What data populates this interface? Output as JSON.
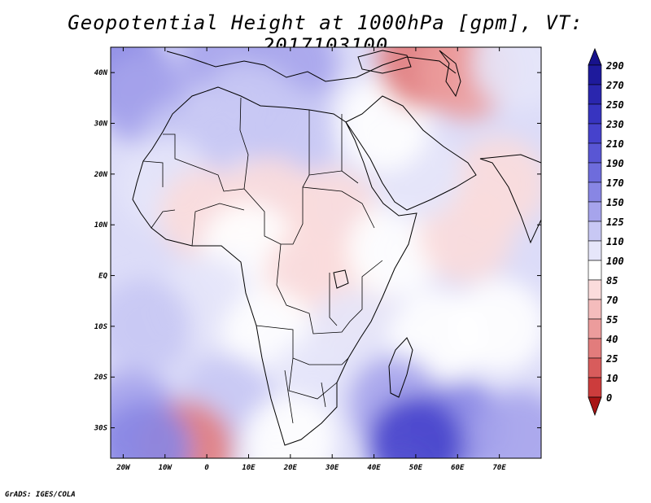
{
  "title": "Geopotential Height at 1000hPa [gpm], VT: 2017103100",
  "credit": "GrADS: IGES/COLA",
  "map": {
    "lat_range": [
      -36,
      45
    ],
    "lon_range": [
      -23,
      80
    ],
    "lat_ticks": [
      {
        "value": 40,
        "label": "40N"
      },
      {
        "value": 30,
        "label": "30N"
      },
      {
        "value": 20,
        "label": "20N"
      },
      {
        "value": 10,
        "label": "10N"
      },
      {
        "value": 0,
        "label": "EQ"
      },
      {
        "value": -10,
        "label": "10S"
      },
      {
        "value": -20,
        "label": "20S"
      },
      {
        "value": -30,
        "label": "30S"
      }
    ],
    "lon_ticks": [
      {
        "value": -20,
        "label": "20W"
      },
      {
        "value": -10,
        "label": "10W"
      },
      {
        "value": 0,
        "label": "0"
      },
      {
        "value": 10,
        "label": "10E"
      },
      {
        "value": 20,
        "label": "20E"
      },
      {
        "value": 30,
        "label": "30E"
      },
      {
        "value": 40,
        "label": "40E"
      },
      {
        "value": 50,
        "label": "50E"
      },
      {
        "value": 60,
        "label": "60E"
      },
      {
        "value": 70,
        "label": "70E"
      }
    ],
    "field_blobs": [
      {
        "lon": -20,
        "lat": 40,
        "value": 170
      },
      {
        "lon": -15,
        "lat": 35,
        "value": 150
      },
      {
        "lon": 5,
        "lat": 44,
        "value": 155
      },
      {
        "lon": 20,
        "lat": 42,
        "value": 160
      },
      {
        "lon": 10,
        "lat": 33,
        "value": 140
      },
      {
        "lon": 20,
        "lat": 28,
        "value": 145
      },
      {
        "lon": -5,
        "lat": 25,
        "value": 130
      },
      {
        "lon": -10,
        "lat": 18,
        "value": 110
      },
      {
        "lon": 0,
        "lat": 12,
        "value": 95
      },
      {
        "lon": 15,
        "lat": 14,
        "value": 90
      },
      {
        "lon": 30,
        "lat": 12,
        "value": 85
      },
      {
        "lon": 10,
        "lat": 5,
        "value": 100
      },
      {
        "lon": 25,
        "lat": 0,
        "value": 85
      },
      {
        "lon": 32,
        "lat": -5,
        "value": 85
      },
      {
        "lon": 45,
        "lat": 5,
        "value": 100
      },
      {
        "lon": 62,
        "lat": 8,
        "value": 90
      },
      {
        "lon": 70,
        "lat": 18,
        "value": 95
      },
      {
        "lon": 50,
        "lat": 20,
        "value": 112
      },
      {
        "lon": 42,
        "lat": 30,
        "value": 100
      },
      {
        "lon": 52,
        "lat": 42,
        "value": 40
      },
      {
        "lon": 62,
        "lat": 40,
        "value": 60
      },
      {
        "lon": 75,
        "lat": 42,
        "value": 120
      },
      {
        "lon": 0,
        "lat": -5,
        "value": 115
      },
      {
        "lon": -15,
        "lat": -10,
        "value": 125
      },
      {
        "lon": 15,
        "lat": -12,
        "value": 105
      },
      {
        "lon": 35,
        "lat": -12,
        "value": 110
      },
      {
        "lon": 55,
        "lat": -12,
        "value": 100
      },
      {
        "lon": 70,
        "lat": -10,
        "value": 105
      },
      {
        "lon": 25,
        "lat": -22,
        "value": 120
      },
      {
        "lon": 5,
        "lat": -25,
        "value": 140
      },
      {
        "lon": -18,
        "lat": -28,
        "value": 160
      },
      {
        "lon": 45,
        "lat": -25,
        "value": 160
      },
      {
        "lon": 60,
        "lat": -30,
        "value": 180
      },
      {
        "lon": 50,
        "lat": -33,
        "value": 230
      },
      {
        "lon": 20,
        "lat": -33,
        "value": 100
      },
      {
        "lon": -5,
        "lat": -34,
        "value": 40
      },
      {
        "lon": -15,
        "lat": -34,
        "value": 170
      },
      {
        "lon": 75,
        "lat": -32,
        "value": 150
      }
    ]
  },
  "colorbar": {
    "levels": [
      {
        "label": "290",
        "color": "#1e1a9c"
      },
      {
        "label": "270",
        "color": "#2a26ae"
      },
      {
        "label": "250",
        "color": "#3734c0"
      },
      {
        "label": "230",
        "color": "#4642cc"
      },
      {
        "label": "210",
        "color": "#5956d4"
      },
      {
        "label": "190",
        "color": "#6e6cdc"
      },
      {
        "label": "170",
        "color": "#8886e4"
      },
      {
        "label": "150",
        "color": "#a6a4ec"
      },
      {
        "label": "125",
        "color": "#c8c8f4"
      },
      {
        "label": "110",
        "color": "#e6e6fa"
      },
      {
        "label": "100",
        "color": "#ffffff"
      },
      {
        "label": "85",
        "color": "#fbdcdc"
      },
      {
        "label": "70",
        "color": "#f4bcbc"
      },
      {
        "label": "55",
        "color": "#ec9c9c"
      },
      {
        "label": "40",
        "color": "#e27c7c"
      },
      {
        "label": "25",
        "color": "#d85c5c"
      },
      {
        "label": "10",
        "color": "#cc3c3c"
      },
      {
        "label": "0",
        "color": "#be2222"
      }
    ],
    "top_cap_color": "#17128c",
    "bottom_cap_color": "#a81414"
  },
  "colors": {
    "frame": "#000000",
    "coastline": "#000000"
  }
}
